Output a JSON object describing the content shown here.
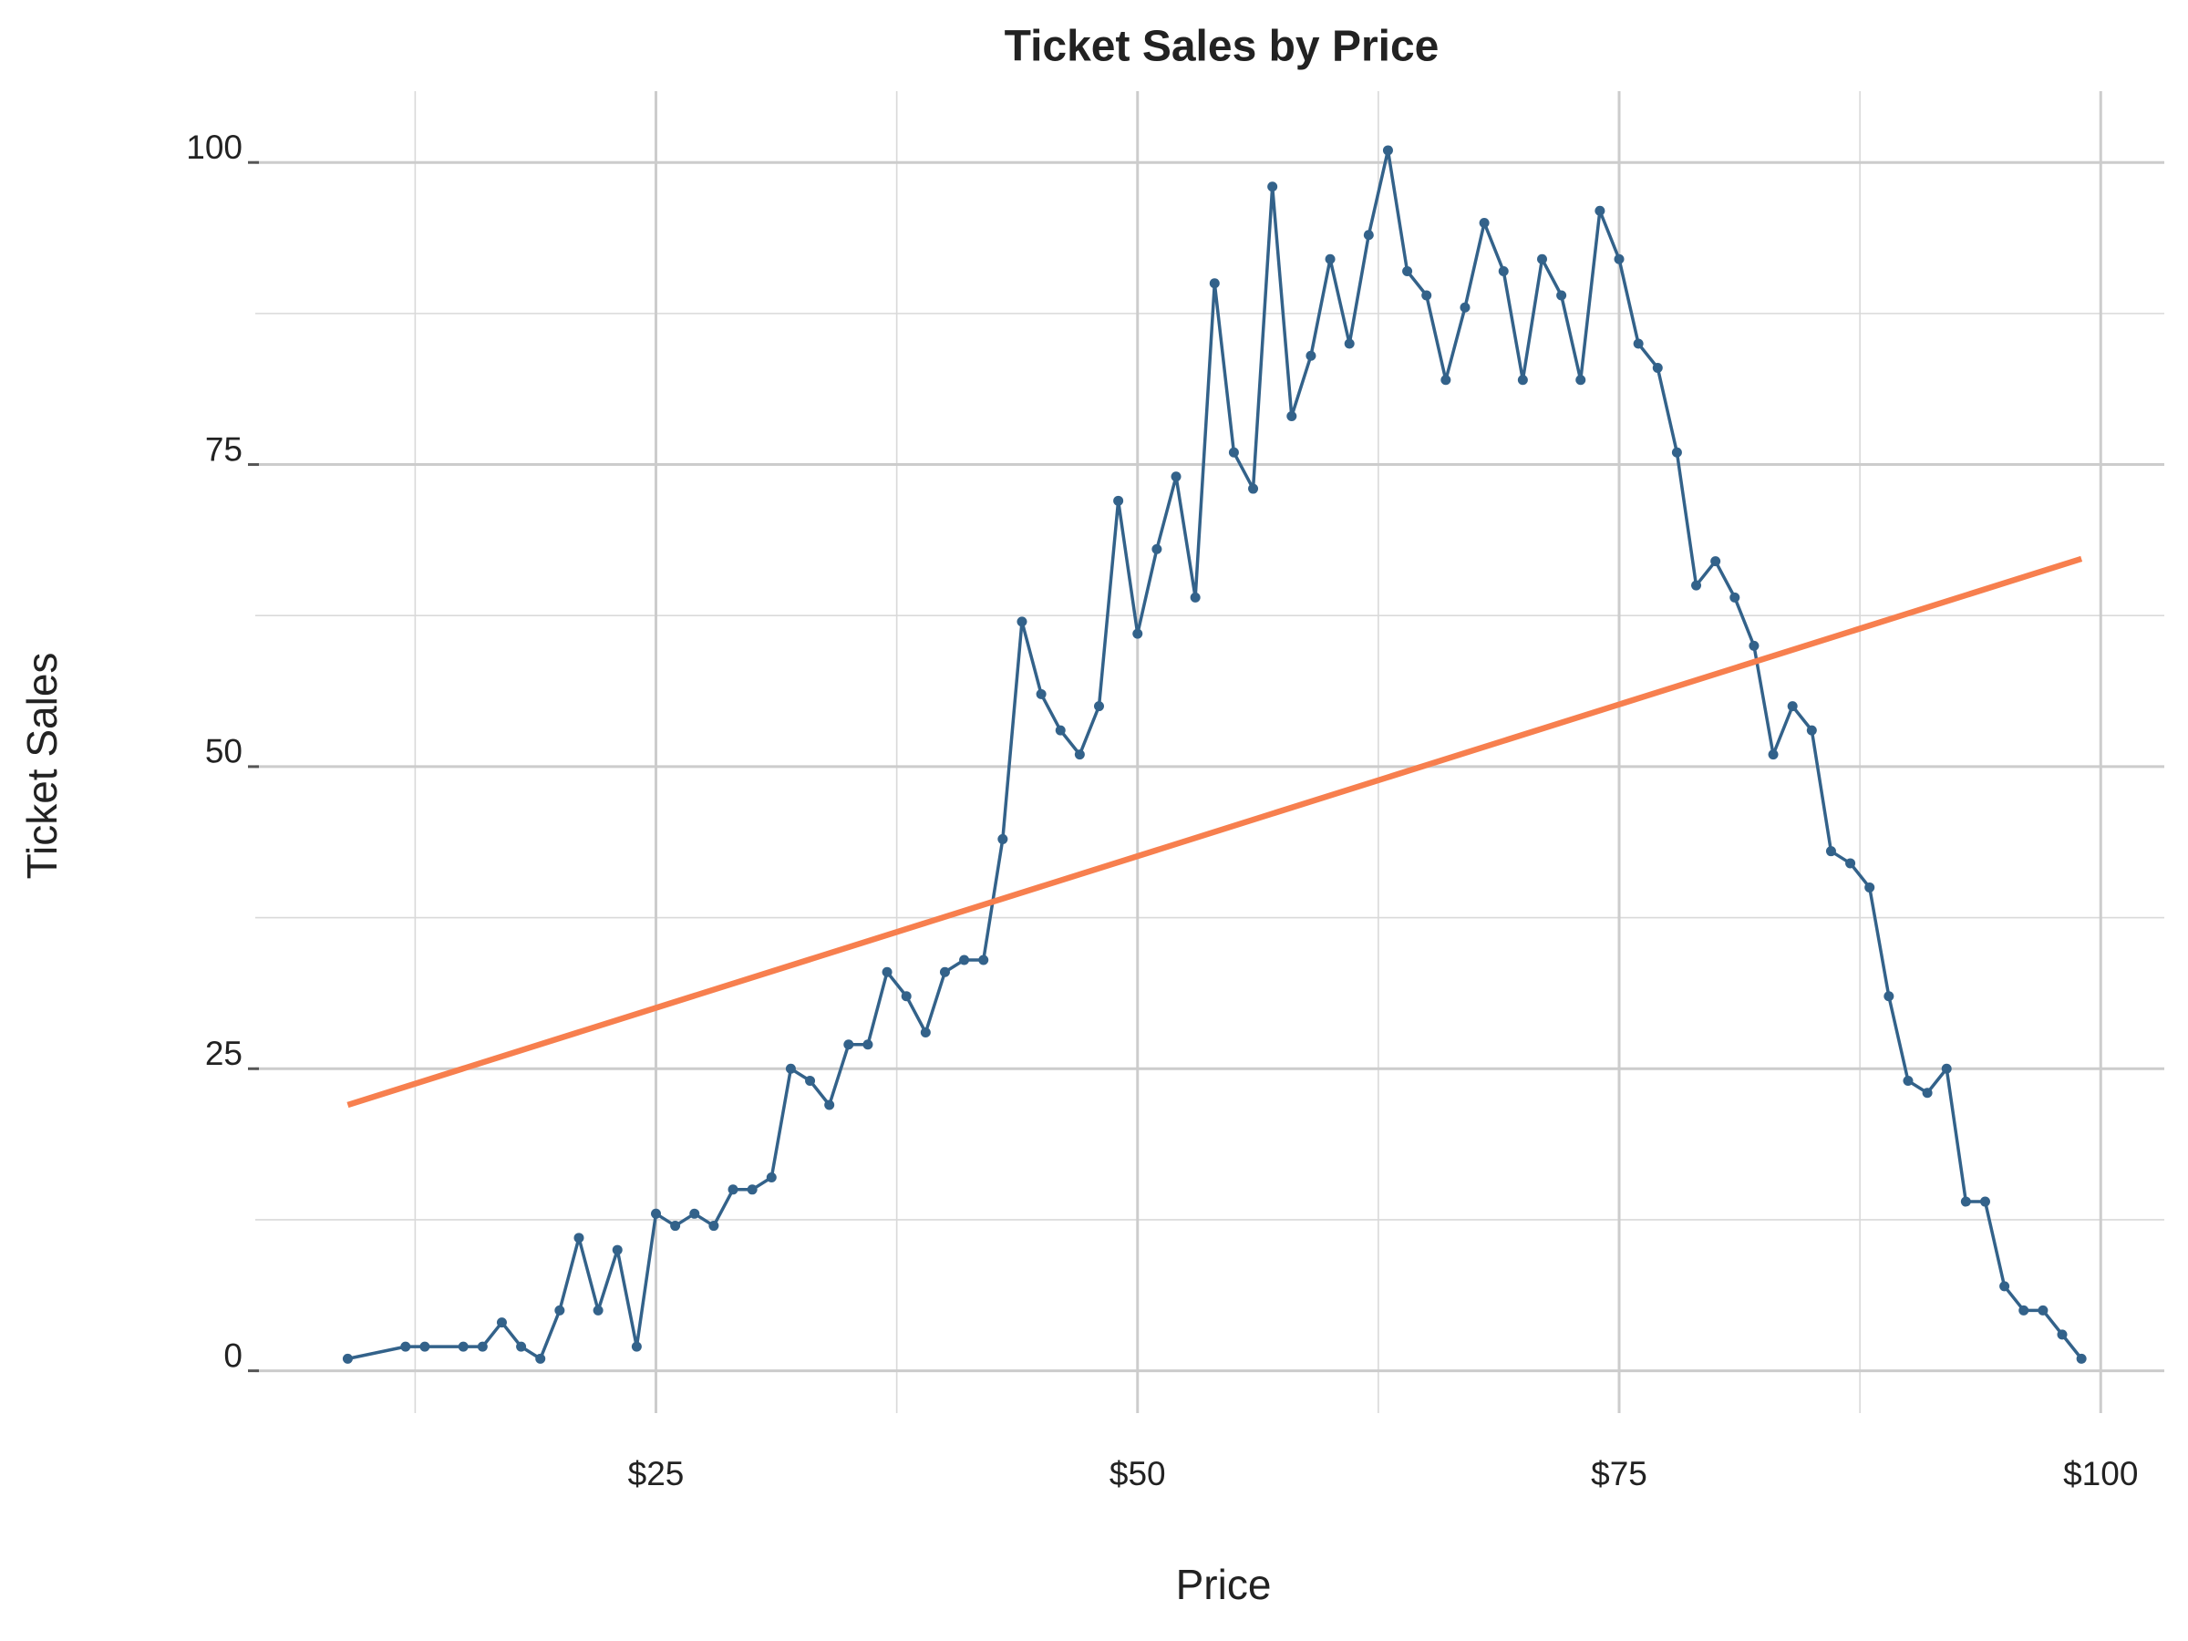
{
  "chart_data": {
    "type": "line",
    "title": "Ticket Sales by Price",
    "xlabel": "Price",
    "ylabel": "Ticket Sales",
    "xlim": [
      4.2,
      103.3
    ],
    "ylim": [
      -3.5,
      105.9
    ],
    "xticks": [
      {
        "value": 25,
        "label": "$25"
      },
      {
        "value": 50,
        "label": "$50"
      },
      {
        "value": 75,
        "label": "$75"
      },
      {
        "value": 100,
        "label": "$100"
      }
    ],
    "xminor_ticks": [
      12.5,
      37.5,
      62.5,
      87.5
    ],
    "yticks": [
      0,
      25,
      50,
      75,
      100
    ],
    "yminor_ticks": [
      12.5,
      37.5,
      62.5,
      87.5
    ],
    "grid": true,
    "series": [
      {
        "color": "#33628a",
        "markers": true,
        "x": [
          9,
          12,
          13,
          15,
          16,
          17,
          18,
          19,
          20,
          21,
          22,
          23,
          24,
          25,
          26,
          27,
          28,
          29,
          30,
          31,
          32,
          33,
          34,
          35,
          36,
          37,
          38,
          39,
          40,
          41,
          42,
          43,
          44,
          45,
          46,
          47,
          48,
          49,
          50,
          51,
          52,
          53,
          54,
          55,
          56,
          57,
          58,
          59,
          60,
          61,
          62,
          63,
          64,
          65,
          66,
          67,
          68,
          69,
          70,
          71,
          72,
          73,
          74,
          75,
          76,
          77,
          78,
          79,
          80,
          81,
          82,
          83,
          84,
          85,
          86,
          87,
          88,
          89,
          90,
          91,
          92,
          93,
          94,
          95,
          96,
          97,
          98,
          99
        ],
        "values": [
          1,
          2,
          2,
          2,
          2,
          4,
          2,
          1,
          5,
          11,
          5,
          10,
          2,
          13,
          12,
          13,
          12,
          15,
          15,
          16,
          25,
          24,
          22,
          27,
          27,
          33,
          31,
          28,
          33,
          34,
          34,
          44,
          62,
          56,
          53,
          51,
          55,
          72,
          61,
          68,
          74,
          64,
          90,
          76,
          73,
          98,
          79,
          84,
          92,
          85,
          94,
          101,
          91,
          89,
          82,
          88,
          95,
          91,
          82,
          92,
          89,
          82,
          96,
          92,
          85,
          83,
          76,
          65,
          67,
          64,
          60,
          51,
          55,
          53,
          43,
          42,
          40,
          31,
          24,
          23,
          25,
          14,
          14,
          7,
          5,
          5,
          3,
          1
        ]
      },
      {
        "color": "#f77f4e",
        "markers": false,
        "x": [
          9,
          99
        ],
        "values": [
          22,
          67.2
        ]
      }
    ]
  }
}
